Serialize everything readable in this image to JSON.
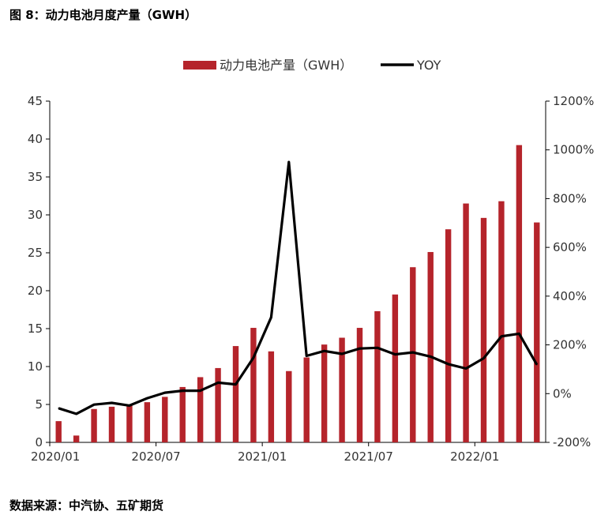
{
  "figure": {
    "title": "图 8：动力电池月度产量（GWH）",
    "source": "数据来源：中汽协、五矿期货"
  },
  "colors": {
    "bar": "#B5242B",
    "line": "#000000",
    "axis": "#000000"
  },
  "chart_data": {
    "type": "bar",
    "title": "",
    "xlabel": "",
    "ylabel": "",
    "legend": {
      "placement": "top"
    },
    "grid": false,
    "categories": [
      "2020/01",
      "2020/02",
      "2020/03",
      "2020/04",
      "2020/05",
      "2020/06",
      "2020/07",
      "2020/08",
      "2020/09",
      "2020/10",
      "2020/11",
      "2020/12",
      "2021/01",
      "2021/02",
      "2021/03",
      "2021/04",
      "2021/05",
      "2021/06",
      "2021/07",
      "2021/08",
      "2021/09",
      "2021/10",
      "2021/11",
      "2021/12",
      "2022/01",
      "2022/02",
      "2022/03",
      "2022/04"
    ],
    "x_tick_labels": [
      "2020/01",
      "2020/07",
      "2021/01",
      "2021/07",
      "2022/01"
    ],
    "y_left": {
      "ylim": [
        0,
        45
      ],
      "ticks": [
        "0",
        "5",
        "10",
        "15",
        "20",
        "25",
        "30",
        "35",
        "40",
        "45"
      ]
    },
    "y_right": {
      "ylim": [
        -200,
        1200
      ],
      "ticks": [
        "-200%",
        "0%",
        "200%",
        "400%",
        "600%",
        "800%",
        "1000%",
        "1200%"
      ]
    },
    "series": [
      {
        "name": "动力电池产量（GWH）",
        "kind": "bar",
        "axis": "left",
        "values": [
          2.8,
          0.9,
          4.4,
          4.7,
          5.0,
          5.3,
          6.0,
          7.3,
          8.6,
          9.8,
          12.7,
          15.1,
          12.0,
          9.4,
          11.2,
          12.9,
          13.8,
          15.1,
          17.3,
          19.5,
          23.1,
          25.1,
          28.1,
          31.5,
          29.6,
          31.8,
          39.2,
          29.0
        ]
      },
      {
        "name": "YOY",
        "kind": "line",
        "axis": "right",
        "values": [
          -60,
          -83,
          -45,
          -38,
          -49,
          -19,
          4,
          12,
          12,
          45,
          38,
          147,
          313,
          950,
          155,
          175,
          163,
          185,
          188,
          161,
          169,
          152,
          121,
          103,
          145,
          235,
          246,
          119
        ]
      }
    ]
  }
}
